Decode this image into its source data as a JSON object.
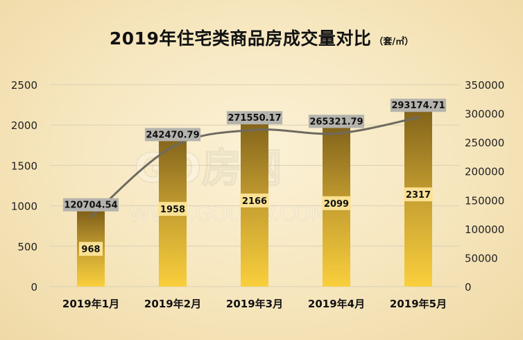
{
  "chart_data": {
    "type": "bar",
    "title": "2019年住宅类商品房成交量对比",
    "unit": "（套/㎡）",
    "categories": [
      "2019年1月",
      "2019年2月",
      "2019年3月",
      "2019年4月",
      "2019年5月"
    ],
    "series": [
      {
        "type": "bar",
        "axis": "left",
        "values": [
          968,
          1958,
          2166,
          2099,
          2317
        ]
      },
      {
        "type": "line",
        "axis": "right",
        "values": [
          120704.54,
          242470.79,
          271550.17,
          265321.79,
          293174.71
        ]
      }
    ],
    "left_axis": {
      "ylim": [
        0,
        2500
      ],
      "ticks": [
        0,
        500,
        1000,
        1500,
        2000,
        2500
      ]
    },
    "right_axis": {
      "ylim": [
        0,
        350000
      ],
      "ticks": [
        0,
        50000,
        100000,
        150000,
        200000,
        250000,
        300000,
        350000
      ]
    },
    "grid": true,
    "watermark": "GO房网 WWW.GOUFW.COM",
    "colors": {
      "bar_top": "#7a5c18",
      "bar_bottom": "#f9cf3c",
      "line": "#6e6a60",
      "line_label_bg": "#b5b3ad",
      "bar_label_bg": "#fde59a",
      "grid": "#d9cfb4"
    }
  }
}
